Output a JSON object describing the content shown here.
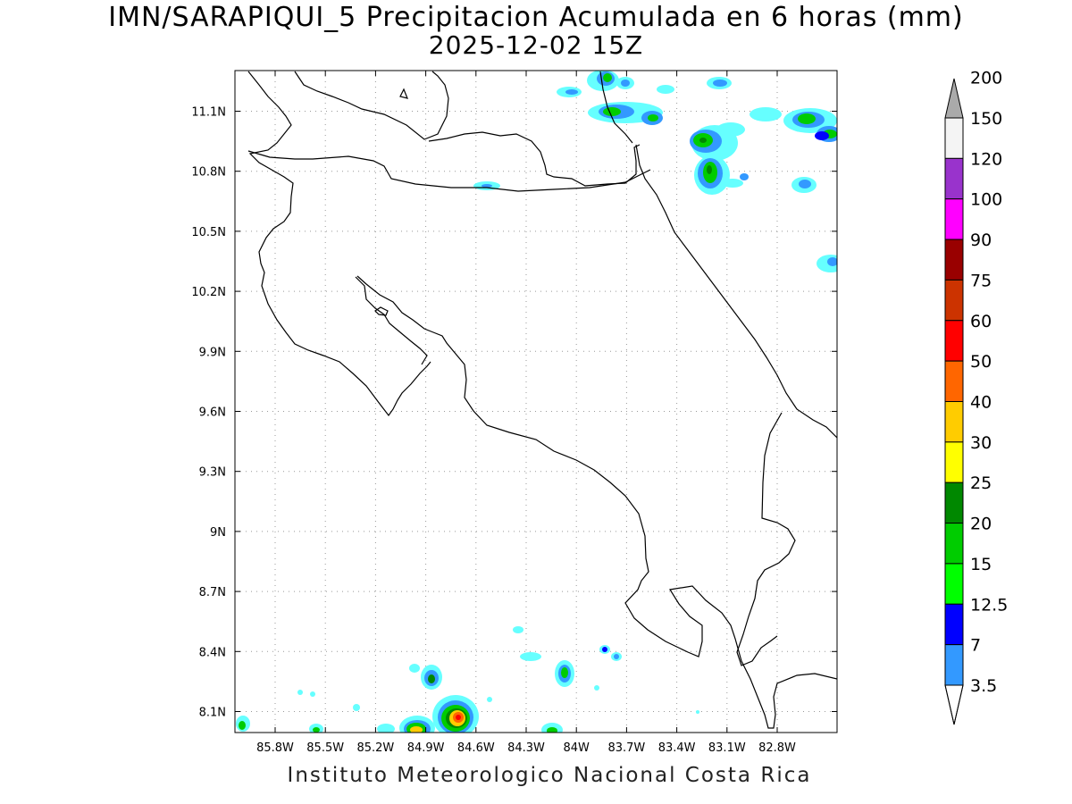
{
  "title": {
    "line1": "IMN/SARAPIQUI_5 Precipitacion Acumulada en 6 horas (mm)",
    "line2": "2025-12-02 15Z"
  },
  "footer": "Instituto Meteorologico Nacional Costa Rica",
  "map": {
    "region": "Costa Rica",
    "lon_range": [
      -86.0,
      -82.5
    ],
    "lat_range": [
      8.0,
      11.2
    ],
    "lon_ticks": [
      "85.8W",
      "85.5W",
      "85.2W",
      "84.9W",
      "84.6W",
      "84.3W",
      "84W",
      "83.7W",
      "83.4W",
      "83.1W",
      "82.8W"
    ],
    "lat_ticks": [
      "11.1N",
      "10.8N",
      "10.5N",
      "10.2N",
      "9.9N",
      "9.6N",
      "9.3N",
      "9N",
      "8.7N",
      "8.4N",
      "8.1N"
    ],
    "grid": true,
    "gridline_style": "dotted"
  },
  "colorbar": {
    "labels": [
      "3.5",
      "7",
      "12.5",
      "15",
      "20",
      "25",
      "30",
      "40",
      "50",
      "60",
      "75",
      "90",
      "100",
      "120",
      "150",
      "200"
    ],
    "colors": [
      "#66ffff",
      "#3399ff",
      "#0000ff",
      "#00ff00",
      "#00cc00",
      "#008800",
      "#ffff00",
      "#ffcc00",
      "#ff6600",
      "#ff0000",
      "#cc3300",
      "#990000",
      "#ff00ff",
      "#9933cc",
      "#f4f4f4",
      "#aaaaaa"
    ],
    "units": "mm"
  }
}
